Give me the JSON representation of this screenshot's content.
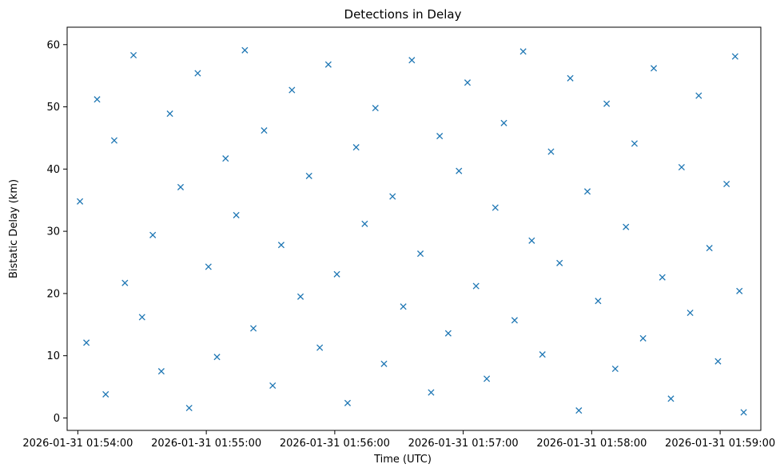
{
  "chart_data": {
    "type": "scatter",
    "title": "Detections in Delay",
    "xlabel": "Time (UTC)",
    "ylabel": "Bistatic Delay (km)",
    "marker": "x",
    "color": "#1f77b4",
    "grid": false,
    "x_type": "datetime",
    "xlim": [
      "2026-01-31 01:53:55",
      "2026-01-31 01:59:19"
    ],
    "ylim": [
      -2.0,
      62.8
    ],
    "x_ticks": [
      "2026-01-31 01:54:00",
      "2026-01-31 01:55:00",
      "2026-01-31 01:56:00",
      "2026-01-31 01:57:00",
      "2026-01-31 01:58:00",
      "2026-01-31 01:59:00"
    ],
    "y_ticks": [
      0,
      10,
      20,
      30,
      40,
      50,
      60
    ],
    "points": [
      {
        "x": "2026-01-31 01:54:01",
        "y": 34.8
      },
      {
        "x": "2026-01-31 01:54:04",
        "y": 12.1
      },
      {
        "x": "2026-01-31 01:54:09",
        "y": 51.2
      },
      {
        "x": "2026-01-31 01:54:13",
        "y": 3.8
      },
      {
        "x": "2026-01-31 01:54:17",
        "y": 44.6
      },
      {
        "x": "2026-01-31 01:54:22",
        "y": 21.7
      },
      {
        "x": "2026-01-31 01:54:26",
        "y": 58.3
      },
      {
        "x": "2026-01-31 01:54:30",
        "y": 16.2
      },
      {
        "x": "2026-01-31 01:54:35",
        "y": 29.4
      },
      {
        "x": "2026-01-31 01:54:39",
        "y": 7.5
      },
      {
        "x": "2026-01-31 01:54:43",
        "y": 48.9
      },
      {
        "x": "2026-01-31 01:54:48",
        "y": 37.1
      },
      {
        "x": "2026-01-31 01:54:52",
        "y": 1.6
      },
      {
        "x": "2026-01-31 01:54:56",
        "y": 55.4
      },
      {
        "x": "2026-01-31 01:55:01",
        "y": 24.3
      },
      {
        "x": "2026-01-31 01:55:05",
        "y": 9.8
      },
      {
        "x": "2026-01-31 01:55:09",
        "y": 41.7
      },
      {
        "x": "2026-01-31 01:55:14",
        "y": 32.6
      },
      {
        "x": "2026-01-31 01:55:18",
        "y": 59.1
      },
      {
        "x": "2026-01-31 01:55:22",
        "y": 14.4
      },
      {
        "x": "2026-01-31 01:55:27",
        "y": 46.2
      },
      {
        "x": "2026-01-31 01:55:31",
        "y": 5.2
      },
      {
        "x": "2026-01-31 01:55:35",
        "y": 27.8
      },
      {
        "x": "2026-01-31 01:55:40",
        "y": 52.7
      },
      {
        "x": "2026-01-31 01:55:44",
        "y": 19.5
      },
      {
        "x": "2026-01-31 01:55:48",
        "y": 38.9
      },
      {
        "x": "2026-01-31 01:55:53",
        "y": 11.3
      },
      {
        "x": "2026-01-31 01:55:57",
        "y": 56.8
      },
      {
        "x": "2026-01-31 01:56:01",
        "y": 23.1
      },
      {
        "x": "2026-01-31 01:56:06",
        "y": 2.4
      },
      {
        "x": "2026-01-31 01:56:10",
        "y": 43.5
      },
      {
        "x": "2026-01-31 01:56:14",
        "y": 31.2
      },
      {
        "x": "2026-01-31 01:56:19",
        "y": 49.8
      },
      {
        "x": "2026-01-31 01:56:23",
        "y": 8.7
      },
      {
        "x": "2026-01-31 01:56:27",
        "y": 35.6
      },
      {
        "x": "2026-01-31 01:56:32",
        "y": 17.9
      },
      {
        "x": "2026-01-31 01:56:36",
        "y": 57.5
      },
      {
        "x": "2026-01-31 01:56:40",
        "y": 26.4
      },
      {
        "x": "2026-01-31 01:56:45",
        "y": 4.1
      },
      {
        "x": "2026-01-31 01:56:49",
        "y": 45.3
      },
      {
        "x": "2026-01-31 01:56:53",
        "y": 13.6
      },
      {
        "x": "2026-01-31 01:56:58",
        "y": 39.7
      },
      {
        "x": "2026-01-31 01:57:02",
        "y": 53.9
      },
      {
        "x": "2026-01-31 01:57:06",
        "y": 21.2
      },
      {
        "x": "2026-01-31 01:57:11",
        "y": 6.3
      },
      {
        "x": "2026-01-31 01:57:15",
        "y": 33.8
      },
      {
        "x": "2026-01-31 01:57:19",
        "y": 47.4
      },
      {
        "x": "2026-01-31 01:57:24",
        "y": 15.7
      },
      {
        "x": "2026-01-31 01:57:28",
        "y": 58.9
      },
      {
        "x": "2026-01-31 01:57:32",
        "y": 28.5
      },
      {
        "x": "2026-01-31 01:57:37",
        "y": 10.2
      },
      {
        "x": "2026-01-31 01:57:41",
        "y": 42.8
      },
      {
        "x": "2026-01-31 01:57:45",
        "y": 24.9
      },
      {
        "x": "2026-01-31 01:57:50",
        "y": 54.6
      },
      {
        "x": "2026-01-31 01:57:54",
        "y": 1.2
      },
      {
        "x": "2026-01-31 01:57:58",
        "y": 36.4
      },
      {
        "x": "2026-01-31 01:58:03",
        "y": 18.8
      },
      {
        "x": "2026-01-31 01:58:07",
        "y": 50.5
      },
      {
        "x": "2026-01-31 01:58:11",
        "y": 7.9
      },
      {
        "x": "2026-01-31 01:58:16",
        "y": 30.7
      },
      {
        "x": "2026-01-31 01:58:20",
        "y": 44.1
      },
      {
        "x": "2026-01-31 01:58:24",
        "y": 12.8
      },
      {
        "x": "2026-01-31 01:58:29",
        "y": 56.2
      },
      {
        "x": "2026-01-31 01:58:33",
        "y": 22.6
      },
      {
        "x": "2026-01-31 01:58:37",
        "y": 3.1
      },
      {
        "x": "2026-01-31 01:58:42",
        "y": 40.3
      },
      {
        "x": "2026-01-31 01:58:46",
        "y": 16.9
      },
      {
        "x": "2026-01-31 01:58:50",
        "y": 51.8
      },
      {
        "x": "2026-01-31 01:58:55",
        "y": 27.3
      },
      {
        "x": "2026-01-31 01:58:59",
        "y": 9.1
      },
      {
        "x": "2026-01-31 01:59:03",
        "y": 37.6
      },
      {
        "x": "2026-01-31 01:59:07",
        "y": 58.1
      },
      {
        "x": "2026-01-31 01:59:09",
        "y": 20.4
      },
      {
        "x": "2026-01-31 01:59:11",
        "y": 0.9
      }
    ]
  }
}
